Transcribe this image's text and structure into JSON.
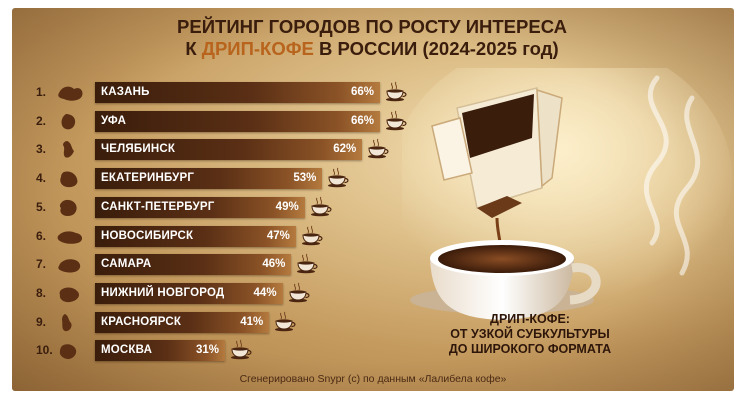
{
  "title": {
    "line1": "РЕЙТИНГ ГОРОДОВ ПО РОСТУ ИНТЕРЕСА",
    "line2_prefix": "К ",
    "line2_accent": "ДРИП-КОФЕ",
    "line2_suffix": " В РОССИИ (2024-2025 год)"
  },
  "caption": {
    "line1": "ДРИП-КОФЕ:",
    "line2": "ОТ УЗКОЙ СУБКУЛЬТУРЫ",
    "line3": "ДО ШИРОКОГО ФОРМАТА"
  },
  "footer": "Сгенерировано Snypr (c) по данным «Лалибела кофе»",
  "colors": {
    "bar_dark": "#3a1d0b",
    "bar_light": "#b47a3e",
    "title": "#3a1d0c",
    "accent": "#b8641d"
  },
  "icons": {
    "region": "region-map-icon",
    "cup": "coffee-cup-icon",
    "illustration": "drip-coffee-illustration"
  },
  "chart_data": {
    "type": "bar",
    "orientation": "horizontal",
    "categories": [
      "КАЗАНЬ",
      "УФА",
      "ЧЕЛЯБИНСК",
      "ЕКАТЕРИНБУРГ",
      "САНКТ-ПЕТЕРБУРГ",
      "НОВОСИБИРСК",
      "САМАРА",
      "НИЖНИЙ НОВГОРОД",
      "КРАСНОЯРСК",
      "МОСКВА"
    ],
    "ranks": [
      "1.",
      "2.",
      "3.",
      "4.",
      "5.",
      "6.",
      "7.",
      "8.",
      "9.",
      "10."
    ],
    "values": [
      66,
      66,
      62,
      53,
      49,
      47,
      46,
      44,
      41,
      31
    ],
    "value_labels": [
      "66%",
      "66%",
      "62%",
      "53%",
      "49%",
      "47%",
      "46%",
      "44%",
      "41%",
      "31%"
    ],
    "unit": "%",
    "xlim": [
      0,
      66
    ],
    "grid": false,
    "legend": "none"
  }
}
